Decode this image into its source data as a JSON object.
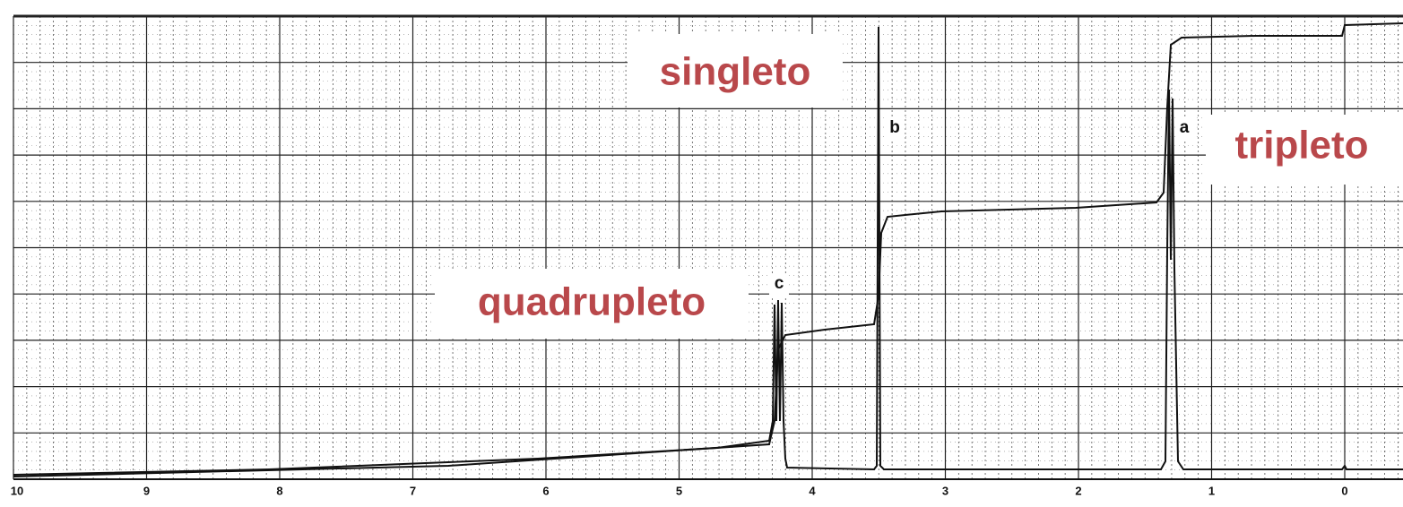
{
  "axis": {
    "ticks": [
      10,
      9,
      8,
      7,
      6,
      5,
      4,
      3,
      2,
      1,
      0
    ]
  },
  "peaks": {
    "a": "a",
    "b": "b",
    "c": "c"
  },
  "annotations": {
    "singlet": "singleto",
    "triplet": "tripleto",
    "quartet": "quadrupleto"
  }
}
